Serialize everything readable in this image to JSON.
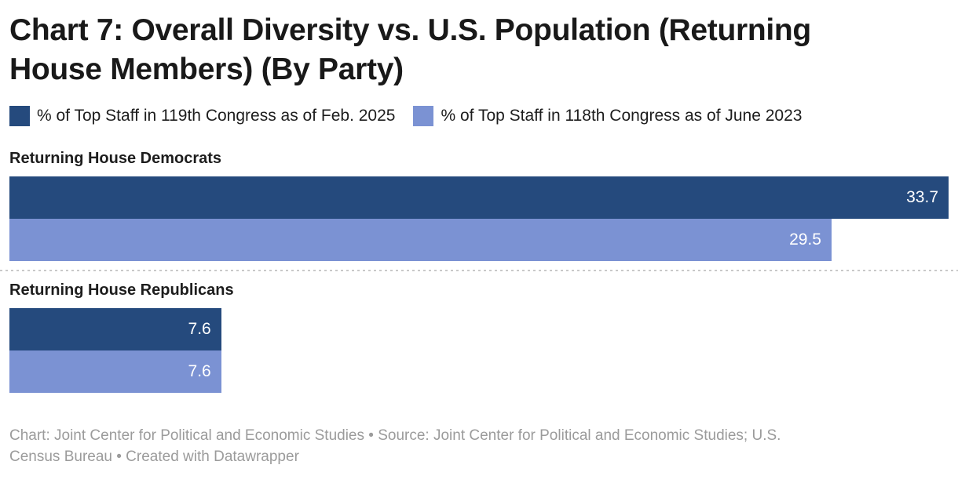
{
  "header": {
    "title_lines": [
      "Chart 7: Overall Diversity vs. U.S. Population (Returning",
      "House Members) (By Party)"
    ]
  },
  "chart_data": {
    "type": "bar",
    "orientation": "horizontal",
    "title": "Chart 7: Overall Diversity vs. U.S. Population (Returning House Members) (By Party)",
    "categories": [
      "Returning House Democrats",
      "Returning House Republicans"
    ],
    "series": [
      {
        "name": "% of Top Staff in 119th Congress as of Feb. 2025",
        "color": "#254a7d",
        "values": [
          33.7,
          7.6
        ]
      },
      {
        "name": "% of Top Staff in 118th Congress as of June 2023",
        "color": "#7b92d3",
        "values": [
          29.5,
          7.6
        ]
      }
    ],
    "xlim": [
      0,
      33.7
    ],
    "value_labels": "inside-end",
    "grid": false,
    "legend_position": "top",
    "value_label_color": "#ffffff"
  },
  "footer": {
    "lines": [
      "Chart: Joint Center for Political and Economic Studies • Source: Joint Center for Political and Economic Studies; U.S.",
      "Census Bureau • Created with Datawrapper"
    ]
  }
}
